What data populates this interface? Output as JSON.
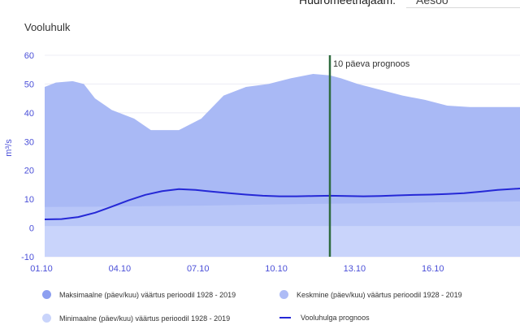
{
  "header": {
    "station_label": "Hüdromeetriajaam:",
    "station_value": "Aesoo"
  },
  "colors": {
    "max_band": "#a9b9f5",
    "mean_band": "#b8c6f8",
    "min_band": "#c9d4fb",
    "forecast_line": "#2528d6",
    "marker_line": "#2f6b3f",
    "axis_text": "#4a4fd8"
  },
  "chart_data": {
    "type": "area",
    "title": "Vooluhulk",
    "ylabel": "m³/s",
    "ylim": [
      -10,
      60
    ],
    "yticks": [
      "60",
      "50",
      "40",
      "30",
      "20",
      "10",
      "0",
      "-10"
    ],
    "xlim": [
      0,
      85
    ],
    "xticks": [
      {
        "x": 0,
        "label": "01.10"
      },
      {
        "x": 14,
        "label": "04.10"
      },
      {
        "x": 28,
        "label": "07.10"
      },
      {
        "x": 42,
        "label": "10.10"
      },
      {
        "x": 56,
        "label": "13.10"
      },
      {
        "x": 70,
        "label": "16.10"
      }
    ],
    "series": [
      {
        "name": "Maksimaalne (päev/kuu) väärtus perioodil 1928 - 2019",
        "x": [
          0,
          2,
          5,
          7,
          9,
          12,
          16,
          19,
          24,
          28,
          32,
          36,
          40,
          44,
          48,
          51,
          53,
          56,
          60,
          64,
          68,
          72,
          76,
          80,
          85
        ],
        "y": [
          49,
          50.5,
          51,
          50,
          45,
          41,
          38,
          34,
          34,
          38,
          46,
          49,
          50,
          52,
          53.5,
          53,
          52,
          50,
          48,
          46,
          44.5,
          42.5,
          42,
          42,
          42
        ]
      },
      {
        "name": "Keskmine (päev/kuu) väärtus perioodil 1928 - 2019",
        "x": [
          0,
          10,
          20,
          30,
          42,
          50,
          60,
          70,
          85
        ],
        "y": [
          7.3,
          7.4,
          7.6,
          7.8,
          8.2,
          8.4,
          8.6,
          8.9,
          9.2
        ]
      },
      {
        "name": "Minimaalne (päev/kuu) väärtus perioodil 1928 - 2019",
        "x": [
          0,
          85
        ],
        "y": [
          0.7,
          0.7
        ]
      },
      {
        "name": "Vooluhulga prognoos",
        "x": [
          0,
          3,
          6,
          9,
          12,
          15,
          18,
          21,
          24,
          27,
          30,
          33,
          36,
          39,
          42,
          45,
          48,
          51,
          54,
          57,
          60,
          63,
          66,
          69,
          72,
          75,
          78,
          81,
          85
        ],
        "y": [
          3,
          3.1,
          3.8,
          5.3,
          7.4,
          9.6,
          11.5,
          12.8,
          13.5,
          13.2,
          12.6,
          12.1,
          11.6,
          11.2,
          11.0,
          11.0,
          11.1,
          11.2,
          11.1,
          11.0,
          11.1,
          11.3,
          11.5,
          11.6,
          11.8,
          12.1,
          12.6,
          13.2,
          13.7
        ]
      }
    ],
    "annotations": [
      {
        "x": 51,
        "label": "10 päeva prognoos"
      }
    ]
  }
}
